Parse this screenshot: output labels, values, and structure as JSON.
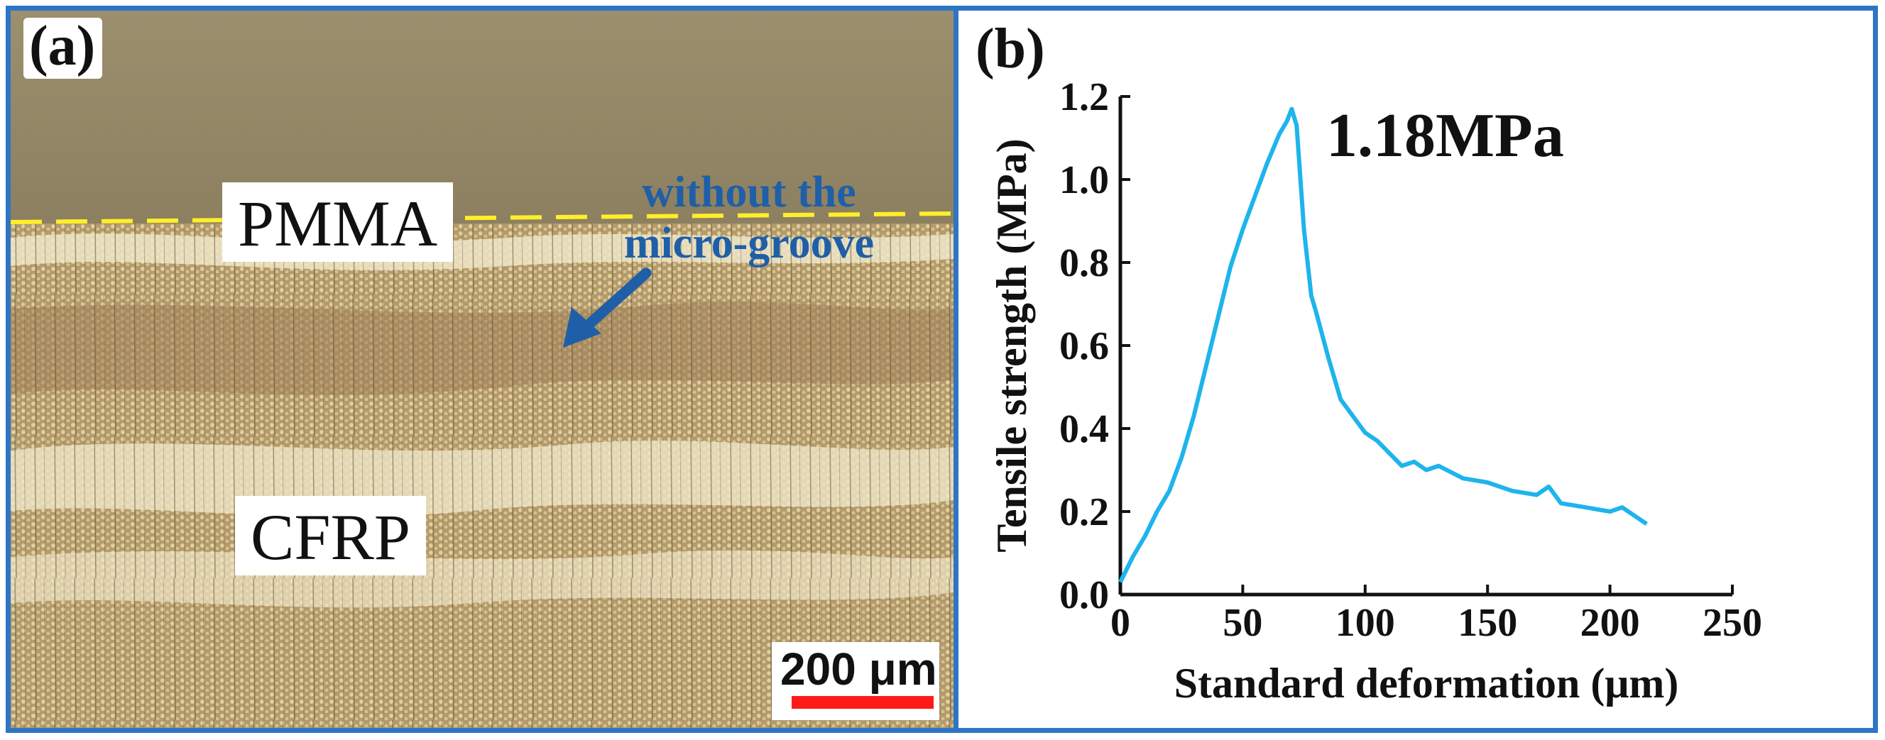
{
  "panel_a": {
    "letter": "(a)",
    "label_top": "PMMA",
    "label_bottom": "CFRP",
    "annotation_line1": "without the",
    "annotation_line2": "micro-groove",
    "scale_label": "200 μm",
    "colors": {
      "annotation": "#1f5fa8",
      "interface_line": "#ffef2a",
      "scale_bar": "#ff1a1a"
    }
  },
  "panel_b": {
    "letter": "(b)"
  },
  "frame_color": "#2e75c4",
  "chart_data": {
    "type": "line",
    "title": "",
    "annotation": "1.18MPa",
    "xlabel": "Standard deformation (μm)",
    "ylabel": "Tensile strength (MPa)",
    "xlim": [
      0,
      250
    ],
    "ylim": [
      0,
      1.2
    ],
    "xticks": [
      "0",
      "50",
      "100",
      "150",
      "200",
      "250"
    ],
    "yticks": [
      "0.0",
      "0.2",
      "0.4",
      "0.6",
      "0.8",
      "1.0",
      "1.2"
    ],
    "grid": false,
    "color": "#1eb4ec",
    "series": [
      {
        "name": "Tensile strength",
        "x": [
          0,
          5,
          10,
          15,
          20,
          25,
          30,
          35,
          40,
          45,
          50,
          55,
          60,
          65,
          68,
          70,
          72,
          75,
          78,
          80,
          85,
          90,
          95,
          100,
          105,
          110,
          115,
          120,
          125,
          130,
          140,
          150,
          160,
          170,
          175,
          180,
          190,
          200,
          205,
          210,
          215
        ],
        "y": [
          0.03,
          0.09,
          0.14,
          0.2,
          0.25,
          0.33,
          0.43,
          0.55,
          0.67,
          0.79,
          0.88,
          0.96,
          1.04,
          1.11,
          1.14,
          1.17,
          1.13,
          0.88,
          0.72,
          0.68,
          0.57,
          0.47,
          0.43,
          0.39,
          0.37,
          0.34,
          0.31,
          0.32,
          0.3,
          0.31,
          0.28,
          0.27,
          0.25,
          0.24,
          0.26,
          0.22,
          0.21,
          0.2,
          0.21,
          0.19,
          0.17
        ]
      }
    ]
  }
}
